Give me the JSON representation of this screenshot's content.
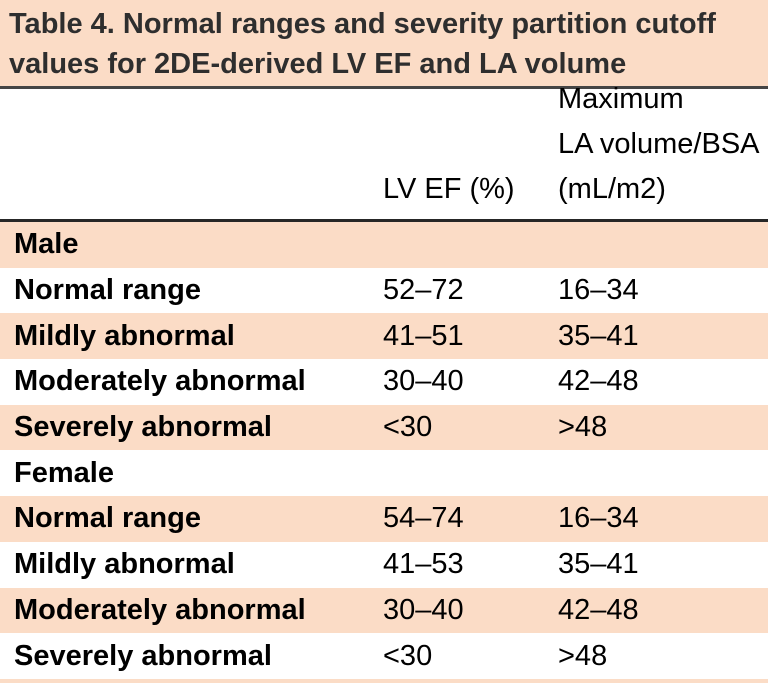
{
  "title": {
    "lines": [
      "Table 4. Normal ranges and severity partition cutoff",
      "values for 2DE-derived LV EF and LA volume"
    ]
  },
  "columns": {
    "row_label": "",
    "lvef": "LV EF (%)",
    "la_volume": "Maximum\nLA volume/BSA\n(mL/m2)"
  },
  "rows": [
    {
      "label": "Male",
      "lvef": "",
      "la": ""
    },
    {
      "label": "Normal range",
      "lvef": "52–72",
      "la": "16–34"
    },
    {
      "label": "Mildly abnormal",
      "lvef": "41–51",
      "la": "35–41"
    },
    {
      "label": "Moderately abnormal",
      "lvef": "30–40",
      "la": "42–48"
    },
    {
      "label": "Severely abnormal",
      "lvef": "<30",
      "la": ">48"
    },
    {
      "label": "Female",
      "lvef": "",
      "la": ""
    },
    {
      "label": "Normal range",
      "lvef": "54–74",
      "la": "16–34"
    },
    {
      "label": "Mildly abnormal",
      "lvef": "41–53",
      "la": "35–41"
    },
    {
      "label": "Moderately abnormal",
      "lvef": "30–40",
      "la": "42–48"
    },
    {
      "label": "Severely abnormal",
      "lvef": "<30",
      "la": ">48"
    }
  ],
  "colors": {
    "peach_background": "#fbdcc6",
    "title_text": "#2e2e2e",
    "body_text": "#000000",
    "title_rule": "#454545",
    "header_rule": "#262626"
  }
}
